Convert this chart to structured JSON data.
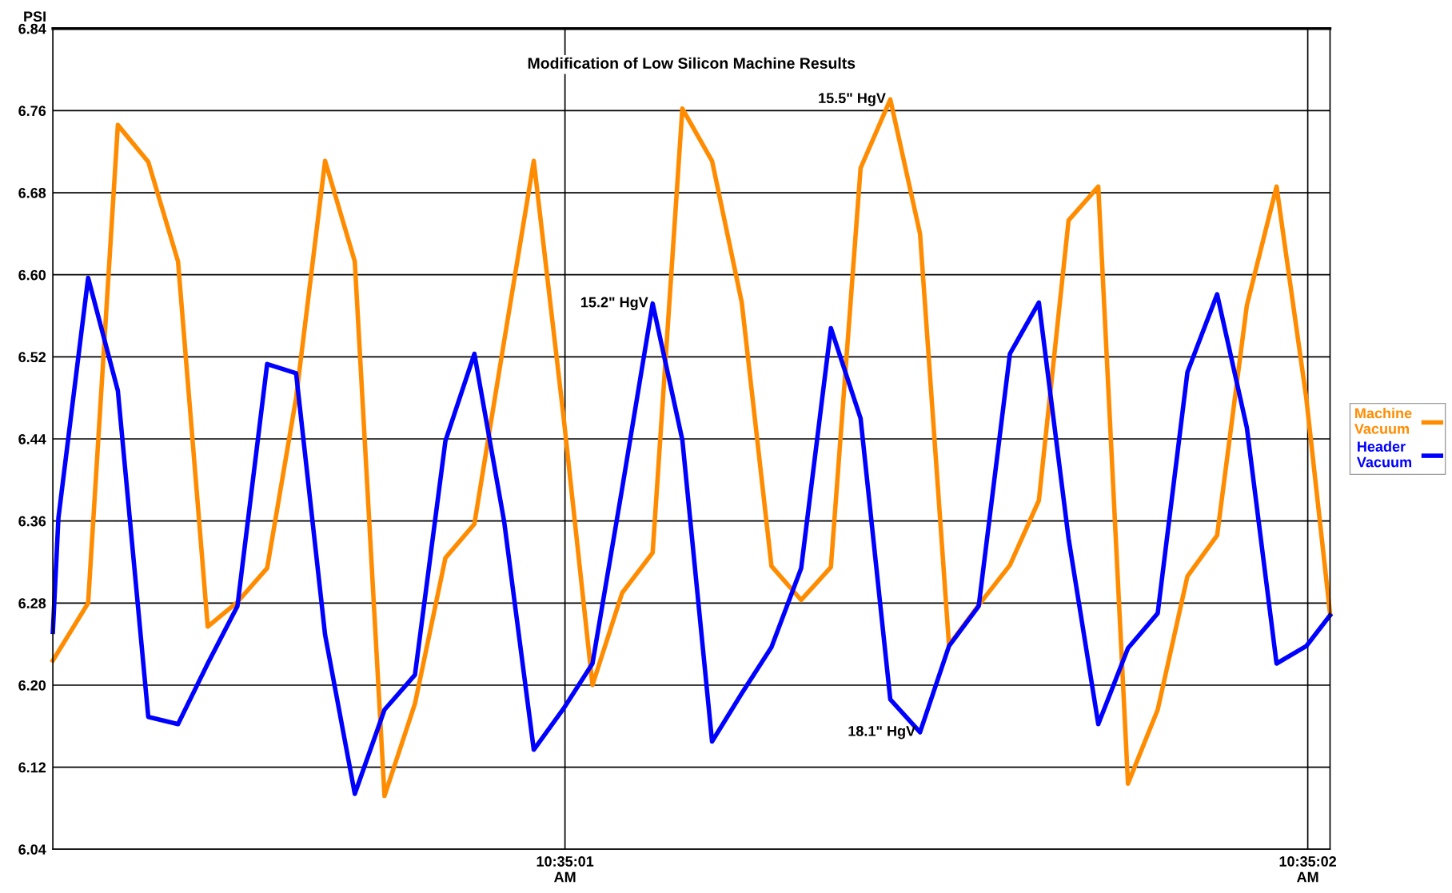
{
  "chart_data": {
    "type": "line",
    "title": "Modification of Low Silicon Machine Results",
    "ylabel": "PSI",
    "xlim": [
      10.58341958,
      10.58389722
    ],
    "xticks": [
      {
        "value": 10.58361111,
        "label": "10:35:01\nAM"
      },
      {
        "value": 10.58388889,
        "label": "10:35:02\nAM"
      }
    ],
    "ylim": [
      6.04,
      6.84
    ],
    "yticks": [
      {
        "value": 6.04,
        "label": "6.04"
      },
      {
        "value": 6.12,
        "label": "6.12"
      },
      {
        "value": 6.2,
        "label": "6.20"
      },
      {
        "value": 6.28,
        "label": "6.28"
      },
      {
        "value": 6.36,
        "label": "6.36"
      },
      {
        "value": 6.44,
        "label": "6.44"
      },
      {
        "value": 6.52,
        "label": "6.52"
      },
      {
        "value": 6.6,
        "label": "6.60"
      },
      {
        "value": 6.68,
        "label": "6.68"
      },
      {
        "value": 6.76,
        "label": "6.76"
      },
      {
        "value": 6.84,
        "label": "6.84"
      }
    ],
    "grid": true,
    "legend": "right",
    "marker": "none",
    "line_style": "solid",
    "series": [
      {
        "name": "Machine\nVacuum",
        "color": "#ff8c00",
        "x": [
          10.58341958,
          10.58343277,
          10.58344389,
          10.58345527,
          10.58346639,
          10.5834775,
          10.58348861,
          10.58349972,
          10.58351055,
          10.58352139,
          10.5835325,
          10.58354361,
          10.583555,
          10.58356639,
          10.58357722,
          10.58358833,
          10.58359944,
          10.58361055,
          10.58362139,
          10.5836325,
          10.58364389,
          10.583655,
          10.58366611,
          10.58367722,
          10.58368833,
          10.58369944,
          10.58371055,
          10.58372166,
          10.58373277,
          10.58374389,
          10.58375472,
          10.58376583,
          10.5837775,
          10.58378833,
          10.58379944,
          10.58381055,
          10.58382166,
          10.58383277,
          10.58384389,
          10.583855,
          10.58386611,
          10.58387722,
          10.58388833,
          10.58389722
        ],
        "values": [
          6.224,
          6.28,
          6.746,
          6.71,
          6.613,
          6.257,
          6.281,
          6.314,
          6.48,
          6.711,
          6.613,
          6.092,
          6.182,
          6.324,
          6.357,
          6.535,
          6.711,
          6.462,
          6.2,
          6.29,
          6.329,
          6.762,
          6.711,
          6.573,
          6.316,
          6.283,
          6.315,
          6.704,
          6.771,
          6.64,
          6.239,
          6.278,
          6.317,
          6.38,
          6.653,
          6.686,
          6.104,
          6.176,
          6.306,
          6.346,
          6.57,
          6.686,
          6.48,
          6.27
        ]
      },
      {
        "name": "Header\nVacuum",
        "color": "#0000ff",
        "x": [
          10.58341958,
          10.58342166,
          10.58343277,
          10.58344389,
          10.58345527,
          10.58346639,
          10.5834775,
          10.58348861,
          10.58349972,
          10.58351055,
          10.58352139,
          10.5835325,
          10.58354361,
          10.583555,
          10.58356639,
          10.58357722,
          10.58358833,
          10.58359944,
          10.58361055,
          10.58362139,
          10.5836325,
          10.58364389,
          10.583655,
          10.58366611,
          10.58367722,
          10.58368833,
          10.58369944,
          10.58371055,
          10.58372166,
          10.58373277,
          10.58374389,
          10.58375472,
          10.58376583,
          10.5837775,
          10.58378833,
          10.58379944,
          10.58381055,
          10.58382166,
          10.58383277,
          10.58384389,
          10.583855,
          10.58386611,
          10.58387722,
          10.58388833,
          10.58389722
        ],
        "values": [
          6.252,
          6.363,
          6.597,
          6.487,
          6.169,
          6.162,
          6.221,
          6.277,
          6.513,
          6.504,
          6.249,
          6.094,
          6.176,
          6.21,
          6.438,
          6.523,
          6.36,
          6.137,
          6.177,
          6.221,
          6.392,
          6.572,
          6.439,
          6.145,
          6.192,
          6.237,
          6.314,
          6.548,
          6.46,
          6.186,
          6.154,
          6.238,
          6.277,
          6.523,
          6.573,
          6.343,
          6.162,
          6.236,
          6.27,
          6.505,
          6.581,
          6.451,
          6.221,
          6.238,
          6.268
        ]
      }
    ],
    "annotations": [
      {
        "text": "15.5\" HgV",
        "x": 10.58373277,
        "y": 6.771
      },
      {
        "text": "15.2\" HgV",
        "x": 10.58364389,
        "y": 6.572
      },
      {
        "text": "18.1\" HgV",
        "x": 10.58374389,
        "y": 6.154
      }
    ]
  }
}
